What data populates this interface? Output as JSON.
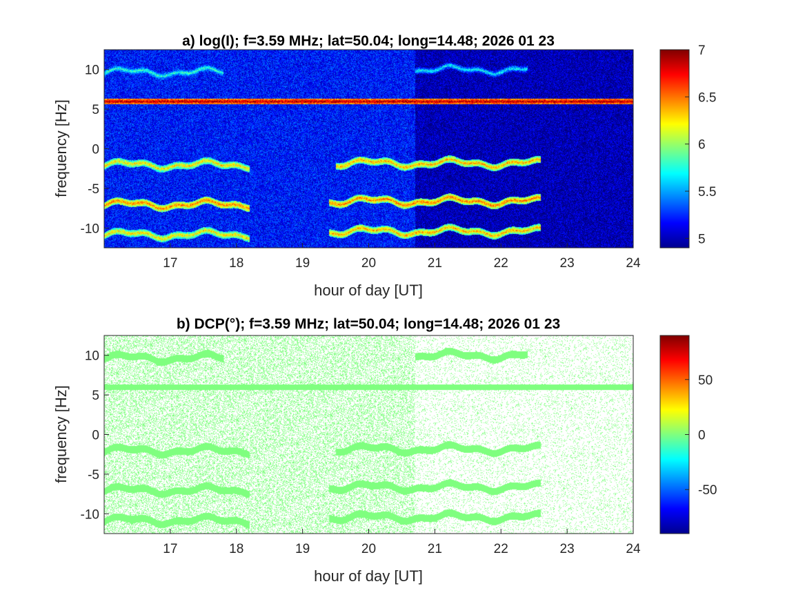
{
  "chart_data": [
    {
      "type": "heatmap",
      "panel": "a",
      "title": "a) log(I); f=3.59 MHz;  lat=50.04; long=14.48; 2026 01 23",
      "xlabel": "hour of day [UT]",
      "ylabel": "frequency [Hz]",
      "xlim": [
        16,
        24
      ],
      "ylim": [
        -12.5,
        12.5
      ],
      "xticks": [
        17,
        18,
        19,
        20,
        21,
        22,
        23,
        24
      ],
      "yticks": [
        10,
        5,
        0,
        -5,
        -10
      ],
      "colorbar": {
        "label": "",
        "clim": [
          4.9,
          7.0
        ],
        "ticks": [
          7,
          6.5,
          6,
          5.5,
          5
        ],
        "colormap": "jet"
      },
      "background_level": {
        "before_20.7h": 5.2,
        "after_20.7h": 5.0
      },
      "traces": [
        {
          "freq": 6.0,
          "x_range": [
            16.0,
            24.0
          ],
          "level": 6.9
        },
        {
          "freq": 9.7,
          "x_range": [
            16.0,
            17.8
          ],
          "level": 5.8
        },
        {
          "freq": 10.0,
          "x_range": [
            20.7,
            22.4
          ],
          "level": 5.7
        },
        {
          "freq": -2.0,
          "x_range": [
            16.0,
            18.2
          ],
          "level": 6.3
        },
        {
          "freq": -1.8,
          "x_range": [
            19.5,
            22.6
          ],
          "level": 6.4
        },
        {
          "freq": -7.0,
          "x_range": [
            16.0,
            18.2
          ],
          "level": 6.5
        },
        {
          "freq": -6.6,
          "x_range": [
            19.4,
            22.6
          ],
          "level": 6.5
        },
        {
          "freq": -10.8,
          "x_range": [
            16.0,
            18.2
          ],
          "level": 6.3
        },
        {
          "freq": -10.4,
          "x_range": [
            19.4,
            22.6
          ],
          "level": 6.4
        }
      ]
    },
    {
      "type": "heatmap",
      "panel": "b",
      "title": "b) DCP(°); f=3.59 MHz;  lat=50.04; long=14.48; 2026 01 23",
      "xlabel": "hour of day [UT]",
      "ylabel": "frequency [Hz]",
      "xlim": [
        16,
        24
      ],
      "ylim": [
        -12.5,
        12.5
      ],
      "xticks": [
        17,
        18,
        19,
        20,
        21,
        22,
        23,
        24
      ],
      "yticks": [
        10,
        5,
        0,
        -5,
        -10
      ],
      "colorbar": {
        "label": "",
        "clim": [
          -90,
          90
        ],
        "ticks": [
          50,
          0,
          -50
        ],
        "colormap": "jet"
      },
      "dominant_value": 0,
      "traces_same_as_panel": "a"
    }
  ],
  "colors": {
    "background": "#ffffff",
    "axis": "#262626",
    "dcp_green": "#8ef06c",
    "low_intensity": "#0a2aa6"
  }
}
